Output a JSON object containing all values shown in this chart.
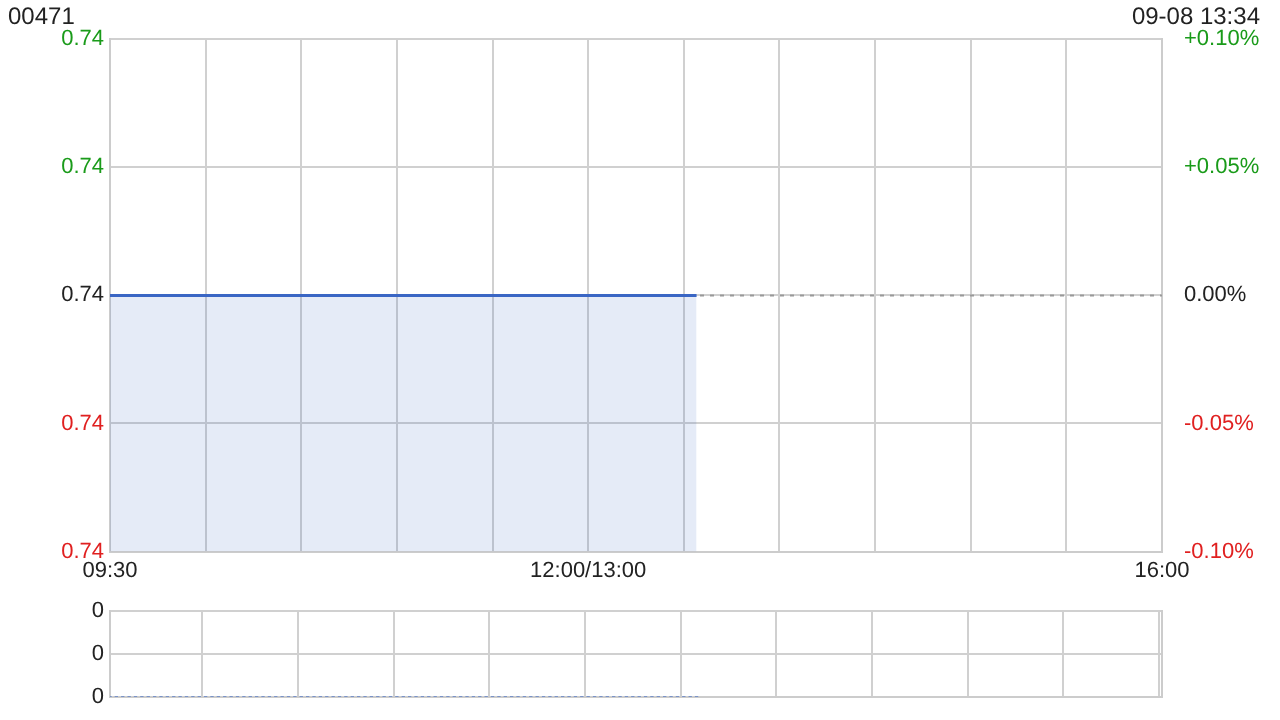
{
  "chart_data": [
    {
      "type": "area",
      "title": "00471",
      "subtitle": "09-08 13:34",
      "categories": [
        "09:30",
        null,
        null,
        null,
        null,
        null,
        null,
        null,
        null,
        null,
        null,
        null,
        null,
        null,
        null,
        null,
        null,
        null,
        null,
        null,
        null,
        null,
        null,
        null,
        null,
        null,
        null,
        null,
        null,
        null,
        null,
        null,
        null,
        null,
        null,
        null,
        null,
        null,
        null,
        null,
        null,
        null,
        null,
        null,
        null,
        null,
        null,
        null,
        null,
        null,
        null,
        null,
        null,
        null,
        null,
        null,
        null,
        null,
        null,
        null,
        null,
        null,
        null,
        null,
        null,
        null,
        null,
        null,
        null,
        null,
        null,
        null,
        null,
        null,
        null,
        "12:00/13:00",
        null,
        null,
        null,
        null,
        null,
        null,
        null,
        null,
        null,
        null,
        null,
        null,
        null,
        null,
        null,
        null,
        null,
        null,
        null,
        null,
        null,
        null,
        null,
        null,
        null,
        null,
        null,
        null,
        null,
        null,
        null,
        null,
        null,
        null,
        null,
        null,
        null,
        null,
        null,
        null,
        null,
        null,
        null,
        null,
        null,
        null,
        null,
        null,
        null,
        null,
        null,
        null,
        null,
        null,
        null,
        null,
        null,
        null,
        null,
        null,
        null,
        null,
        null,
        null,
        null,
        null,
        null,
        null,
        null,
        null,
        null,
        null,
        null,
        null,
        null,
        null,
        null,
        null,
        null,
        null,
        null,
        null,
        null,
        null,
        null,
        null,
        null,
        null,
        null,
        "16:00"
      ],
      "series": [
        {
          "color": "#3a66c4",
          "values": [
            0.74,
            0.74,
            0.74,
            0.74,
            0.74,
            0.74,
            0.74,
            0.74,
            0.74,
            0.74,
            0.74,
            0.74,
            0.74,
            0.74,
            0.74,
            0.74,
            0.74,
            0.74,
            0.74,
            0.74,
            0.74,
            0.74,
            0.74,
            0.74,
            0.74,
            0.74,
            0.74,
            0.74,
            0.74,
            0.74,
            0.74,
            0.74,
            0.74,
            0.74,
            0.74,
            0.74,
            0.74,
            0.74,
            0.74,
            0.74,
            0.74,
            0.74,
            0.74,
            0.74,
            0.74,
            0.74,
            0.74,
            0.74,
            0.74,
            0.74,
            0.74,
            0.74,
            0.74,
            0.74,
            0.74,
            0.74,
            0.74,
            0.74,
            0.74,
            0.74,
            0.74,
            0.74,
            0.74,
            0.74,
            0.74,
            0.74,
            0.74,
            0.74,
            0.74,
            0.74,
            0.74,
            0.74,
            0.74,
            0.74,
            0.74,
            0.74,
            0.74,
            0.74,
            0.74,
            0.74,
            0.74,
            0.74,
            0.74,
            0.74,
            0.74,
            0.74,
            0.74,
            0.74,
            0.74,
            0.74,
            0.74,
            0.74,
            0.74,
            null,
            null,
            null,
            null,
            null,
            null,
            null,
            null,
            null,
            null,
            null,
            null,
            null,
            null,
            null,
            null,
            null,
            null,
            null,
            null,
            null,
            null,
            null,
            null,
            null,
            null,
            null,
            null,
            null,
            null,
            null,
            null,
            null,
            null,
            null,
            null,
            null,
            null,
            null,
            null,
            null,
            null,
            null,
            null,
            null,
            null,
            null,
            null,
            null,
            null,
            null,
            null,
            null,
            null,
            null,
            null,
            null,
            null,
            null,
            null,
            null,
            null,
            null,
            null,
            null,
            null,
            null,
            null,
            null,
            null,
            null,
            null,
            null
          ]
        }
      ],
      "ylim": [
        0.73926,
        0.74074
      ],
      "yticks": [
        {
          "value": 0.73926,
          "label": "0.74"
        },
        {
          "value": 0.73963,
          "label": "0.74"
        },
        {
          "value": 0.74,
          "label": "0.74"
        },
        {
          "value": 0.74037,
          "label": "0.74"
        },
        {
          "value": 0.74074,
          "label": "0.74"
        }
      ],
      "y2lim": [
        -0.1,
        0.1
      ],
      "y2ticks": [
        {
          "value": -0.1,
          "label": "-0.10%"
        },
        {
          "value": -0.05,
          "label": "-0.05%"
        },
        {
          "value": 0,
          "label": "0.00%"
        },
        {
          "value": 0.05,
          "label": "+0.05%"
        },
        {
          "value": 0.1,
          "label": "+0.10%"
        }
      ],
      "ref_lines": [
        {
          "axis": "y",
          "value": 0.74,
          "color": "#999999",
          "line_style": "dotted"
        }
      ],
      "grid": true
    },
    {
      "type": "bar",
      "categories": [
        null,
        null,
        null,
        null,
        null,
        null,
        null,
        null,
        null,
        null,
        null,
        null,
        null,
        null,
        null,
        null,
        null,
        null,
        null,
        null,
        null,
        null,
        null,
        null,
        null,
        null,
        null,
        null,
        null,
        null,
        null,
        null,
        null,
        null,
        null,
        null,
        null,
        null,
        null,
        null,
        null,
        null,
        null,
        null,
        null,
        null,
        null,
        null,
        null,
        null,
        null,
        null,
        null,
        null,
        null,
        null,
        null,
        null,
        null,
        null,
        null,
        null,
        null,
        null,
        null,
        null,
        null,
        null,
        null,
        null,
        null,
        null,
        null,
        null,
        null,
        null,
        null,
        null,
        null,
        null,
        null,
        null,
        null,
        null,
        null,
        null,
        null,
        null,
        null,
        null,
        null,
        null,
        null,
        null,
        null,
        null,
        null,
        null,
        null,
        null,
        null,
        null,
        null,
        null,
        null,
        null,
        null,
        null,
        null,
        null,
        null,
        null,
        null,
        null,
        null,
        null,
        null,
        null,
        null,
        null,
        null,
        null,
        null,
        null,
        null,
        null,
        null,
        null,
        null,
        null,
        null,
        null,
        null,
        null,
        null,
        null,
        null,
        null,
        null,
        null,
        null,
        null,
        null,
        null,
        null,
        null,
        null,
        null,
        null,
        null,
        null,
        null,
        null,
        null,
        null,
        null,
        null,
        null,
        null,
        null,
        null,
        null,
        null,
        null,
        null,
        null
      ],
      "values": [
        0,
        0,
        0,
        0,
        0,
        0,
        0,
        0,
        0,
        0,
        0,
        0,
        0,
        0,
        0,
        0,
        0,
        0,
        0,
        0,
        0,
        0,
        0,
        0,
        0,
        0,
        0,
        0,
        0,
        0,
        0,
        0,
        0,
        0,
        0,
        0,
        0,
        0,
        0,
        0,
        0,
        0,
        0,
        0,
        0,
        0,
        0,
        0,
        0,
        0,
        0,
        0,
        0,
        0,
        0,
        0,
        0,
        0,
        0,
        0,
        0,
        0,
        0,
        0,
        0,
        0,
        0,
        0,
        0,
        0,
        0,
        0,
        0,
        0,
        0,
        0,
        0,
        0,
        0,
        0,
        0,
        0,
        0,
        0,
        0,
        0,
        0,
        0,
        0,
        0,
        0,
        0,
        0,
        null,
        null,
        null,
        null,
        null,
        null,
        null,
        null,
        null,
        null,
        null,
        null,
        null,
        null,
        null,
        null,
        null,
        null,
        null,
        null,
        null,
        null,
        null,
        null,
        null,
        null,
        null,
        null,
        null,
        null,
        null,
        null,
        null,
        null,
        null,
        null,
        null,
        null,
        null,
        null,
        null,
        null,
        null,
        null,
        null,
        null,
        null,
        null,
        null,
        null,
        null,
        null,
        null,
        null,
        null,
        null,
        null,
        null,
        null,
        null,
        null,
        null,
        null,
        null,
        null,
        null,
        null,
        null,
        null,
        null,
        null,
        null,
        null
      ],
      "color": "#3a66c4",
      "ylim": [
        0,
        0.4
      ],
      "yticks": [
        {
          "value": 0,
          "label": "0"
        },
        {
          "value": 0.2,
          "label": "0"
        },
        {
          "value": 0.4,
          "label": "0"
        }
      ],
      "tick_labels": "y",
      "grid": true
    }
  ]
}
